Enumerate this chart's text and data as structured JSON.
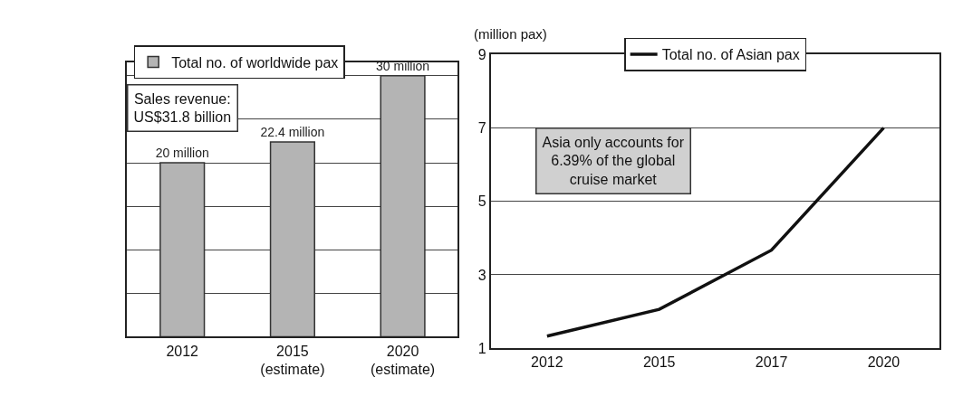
{
  "chart_data": [
    {
      "type": "bar",
      "categories": [
        "2012",
        "2015\n(estimate)",
        "2020\n(estimate)"
      ],
      "series": [
        {
          "name": "Total no. of worldwide pax",
          "color": "#b4b4b4",
          "values": [
            20,
            22.4,
            30
          ],
          "value_labels": [
            "20 million",
            "22.4 million",
            "30 million"
          ]
        }
      ],
      "annotations": [
        "Sales revenue: US$31.8 billion"
      ],
      "grid": "y",
      "tick_labels": "x",
      "legend": "top left"
    },
    {
      "type": "line",
      "categories": [
        "2012",
        "2015",
        "2017",
        "2020"
      ],
      "ylabel": "(million pax)",
      "series": [
        {
          "name": "Total no. of Asian pax",
          "color": "#111111",
          "values": [
            1.33,
            2.06,
            3.67,
            7.0
          ]
        }
      ],
      "ylim": [
        1,
        9
      ],
      "yticks": [
        1,
        3,
        5,
        7,
        9
      ],
      "grid": "y",
      "legend": "top",
      "marker": "none",
      "line_style": "solid",
      "annotations": [
        "Asia only accounts for 6.39% of the global cruise market"
      ]
    }
  ]
}
